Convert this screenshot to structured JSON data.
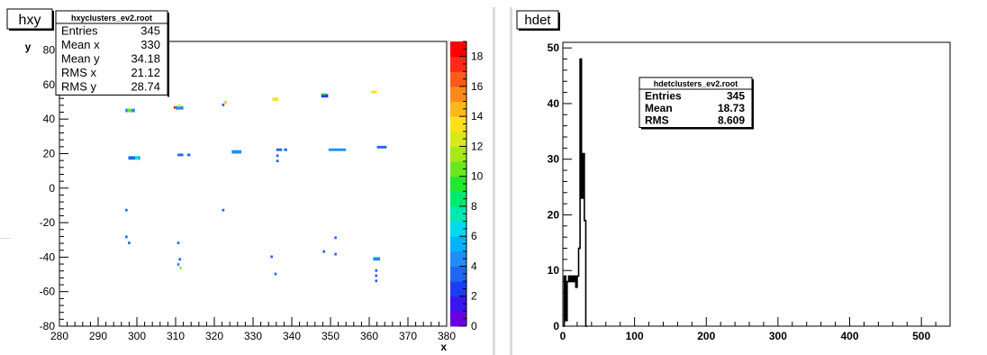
{
  "chart_data": [
    {
      "type": "heatmap",
      "title": "hxy",
      "xlabel": "x",
      "ylabel": "y",
      "xlim": [
        280,
        380
      ],
      "ylim": [
        -80,
        85
      ],
      "x_ticks": [
        "280",
        "290",
        "300",
        "310",
        "320",
        "330",
        "340",
        "350",
        "360",
        "370",
        "380"
      ],
      "y_ticks": [
        "-80",
        "-60",
        "-40",
        "-20",
        "0",
        "20",
        "40",
        "60",
        "80"
      ],
      "colorbar": {
        "range": [
          0,
          19
        ],
        "ticks": [
          "0",
          "2",
          "4",
          "6",
          "8",
          "10",
          "12",
          "14",
          "16",
          "18"
        ],
        "colors": [
          "#6a00e0",
          "#3a16ee",
          "#1f3cf5",
          "#1f66f5",
          "#1f8ef8",
          "#00b2ff",
          "#00d8f0",
          "#00e8b0",
          "#00e870",
          "#20e830",
          "#6ae81e",
          "#a8e81a",
          "#d8e81a",
          "#ffe01a",
          "#ffb81a",
          "#ff8a1a",
          "#ff5a1a",
          "#ff2a1a",
          "#ff0000"
        ]
      },
      "stats_box": {
        "title": "hxyclusters_ev2.root",
        "rows": [
          {
            "label": "Entries",
            "value": "345"
          },
          {
            "label": "Mean x",
            "value": "330"
          },
          {
            "label": "Mean y",
            "value": "34.18"
          },
          {
            "label": "RMS x",
            "value": "21.12"
          },
          {
            "label": "RMS y",
            "value": "28.74"
          }
        ]
      },
      "bins": [
        {
          "x": 297,
          "y": 44,
          "w": 2.5,
          "h": 2,
          "v": 4
        },
        {
          "x": 297.6,
          "y": 44,
          "w": 1,
          "h": 2,
          "v": 10
        },
        {
          "x": 310,
          "y": 45.5,
          "w": 2,
          "h": 2,
          "v": 4
        },
        {
          "x": 310.6,
          "y": 47,
          "w": 0.7,
          "h": 1.5,
          "v": 12
        },
        {
          "x": 309.5,
          "y": 46,
          "w": 0.6,
          "h": 1.5,
          "v": 17
        },
        {
          "x": 322,
          "y": 47.5,
          "w": 0.6,
          "h": 1.5,
          "v": 3
        },
        {
          "x": 322.6,
          "y": 49,
          "w": 0.6,
          "h": 1.5,
          "v": 14
        },
        {
          "x": 335,
          "y": 50.5,
          "w": 1.5,
          "h": 2,
          "v": 13
        },
        {
          "x": 347.6,
          "y": 52.5,
          "w": 1.8,
          "h": 2,
          "v": 2
        },
        {
          "x": 347.8,
          "y": 54,
          "w": 1,
          "h": 1,
          "v": 9
        },
        {
          "x": 360.5,
          "y": 55,
          "w": 1.5,
          "h": 1.5,
          "v": 13
        },
        {
          "x": 297.8,
          "y": 16.5,
          "w": 3,
          "h": 2,
          "v": 3
        },
        {
          "x": 299.5,
          "y": 16.5,
          "w": 1,
          "h": 2,
          "v": 7
        },
        {
          "x": 310.5,
          "y": 18.5,
          "w": 1.5,
          "h": 1.5,
          "v": 3
        },
        {
          "x": 313,
          "y": 18.5,
          "w": 0.8,
          "h": 1.5,
          "v": 3
        },
        {
          "x": 324.5,
          "y": 20,
          "w": 2.5,
          "h": 2,
          "v": 4
        },
        {
          "x": 336,
          "y": 21.5,
          "w": 1.5,
          "h": 1.5,
          "v": 3
        },
        {
          "x": 338,
          "y": 21.5,
          "w": 0.8,
          "h": 1.5,
          "v": 3
        },
        {
          "x": 336,
          "y": 18,
          "w": 0.6,
          "h": 1.5,
          "v": 3
        },
        {
          "x": 336,
          "y": 15,
          "w": 0.6,
          "h": 1.5,
          "v": 3
        },
        {
          "x": 349.5,
          "y": 21.5,
          "w": 4.5,
          "h": 1.5,
          "v": 4
        },
        {
          "x": 362,
          "y": 23,
          "w": 2.5,
          "h": 1.5,
          "v": 3
        },
        {
          "x": 297,
          "y": -13.5,
          "w": 0.6,
          "h": 1.5,
          "v": 3
        },
        {
          "x": 322,
          "y": -13.5,
          "w": 0.6,
          "h": 1.5,
          "v": 3
        },
        {
          "x": 297,
          "y": -29,
          "w": 0.6,
          "h": 1.5,
          "v": 3
        },
        {
          "x": 297.7,
          "y": -32.5,
          "w": 0.6,
          "h": 1.5,
          "v": 3
        },
        {
          "x": 310.4,
          "y": -32.5,
          "w": 0.6,
          "h": 1.5,
          "v": 3
        },
        {
          "x": 351,
          "y": -29.5,
          "w": 0.6,
          "h": 1.5,
          "v": 3
        },
        {
          "x": 348,
          "y": -37.5,
          "w": 0.6,
          "h": 1.5,
          "v": 3
        },
        {
          "x": 351,
          "y": -39,
          "w": 0.6,
          "h": 1.5,
          "v": 3
        },
        {
          "x": 334.5,
          "y": -40.5,
          "w": 0.6,
          "h": 1.5,
          "v": 3
        },
        {
          "x": 361,
          "y": -42,
          "w": 1.8,
          "h": 2,
          "v": 4
        },
        {
          "x": 310.8,
          "y": -42,
          "w": 0.6,
          "h": 1.5,
          "v": 3
        },
        {
          "x": 310.4,
          "y": -45,
          "w": 0.6,
          "h": 1.5,
          "v": 4
        },
        {
          "x": 311,
          "y": -47,
          "w": 0.6,
          "h": 1.5,
          "v": 11
        },
        {
          "x": 335.5,
          "y": -50.5,
          "w": 0.6,
          "h": 1.5,
          "v": 3
        },
        {
          "x": 361.5,
          "y": -48.5,
          "w": 0.6,
          "h": 1.5,
          "v": 3
        },
        {
          "x": 361.5,
          "y": -51.5,
          "w": 0.6,
          "h": 1.5,
          "v": 3
        },
        {
          "x": 361.5,
          "y": -54.5,
          "w": 0.6,
          "h": 1.5,
          "v": 3
        }
      ]
    },
    {
      "type": "bar",
      "title": "hdet",
      "xlim": [
        0,
        540
      ],
      "ylim": [
        0,
        51
      ],
      "x_ticks": [
        "0",
        "100",
        "200",
        "300",
        "400",
        "500"
      ],
      "y_ticks": [
        "0",
        "10",
        "20",
        "30",
        "40",
        "50"
      ],
      "stats_box": {
        "title": "hdetclusters_ev2.root",
        "rows": [
          {
            "label": "Entries",
            "value": "345"
          },
          {
            "label": "Mean",
            "value": "18.73"
          },
          {
            "label": "RMS",
            "value": "8.609"
          }
        ]
      },
      "bin_width": 2,
      "bin_start": 0,
      "values": [
        0,
        9,
        1,
        8,
        9,
        8,
        9,
        8,
        9,
        7,
        9,
        14,
        48,
        23,
        31,
        19,
        0
      ]
    }
  ]
}
